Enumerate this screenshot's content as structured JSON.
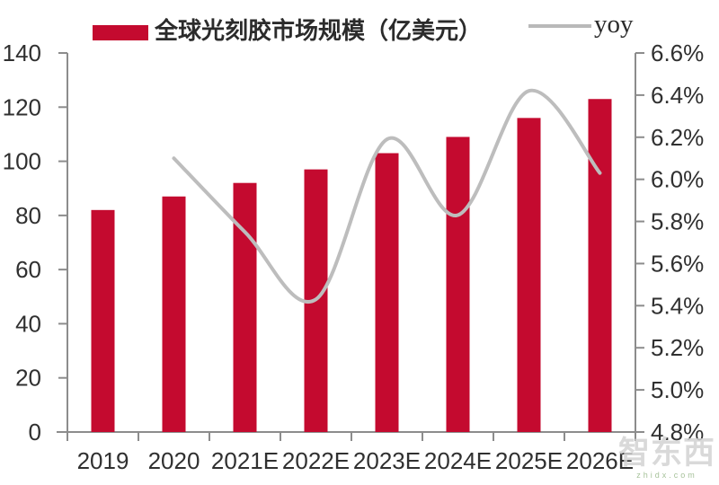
{
  "legend": {
    "series1_label": "全球光刻胶市场规模（亿美元）",
    "series2_label": "yoy"
  },
  "watermark": {
    "name": "智东西",
    "domain": "zhidx.com"
  },
  "colors": {
    "bar": "#C40A2F",
    "line": "#BDBDBD",
    "axis": "#8C8C8C",
    "tick_text": "#303030"
  },
  "chart_data": {
    "type": "bar",
    "title": "",
    "categories": [
      "2019",
      "2020",
      "2021E",
      "2022E",
      "2023E",
      "2024E",
      "2025E",
      "2026E"
    ],
    "series": [
      {
        "name": "全球光刻胶市场规模（亿美元）",
        "type": "bar",
        "axis": "left",
        "color": "#C40A2F",
        "values": [
          82,
          87,
          92,
          97,
          103,
          109,
          116,
          123
        ]
      },
      {
        "name": "yoy",
        "type": "line",
        "axis": "right",
        "color": "#BDBDBD",
        "values": [
          null,
          6.1,
          5.75,
          5.43,
          6.19,
          5.83,
          6.42,
          6.03
        ]
      }
    ],
    "left_axis": {
      "min": 0,
      "max": 140,
      "step": 20,
      "labels": [
        "0",
        "20",
        "40",
        "60",
        "80",
        "100",
        "120",
        "140"
      ]
    },
    "right_axis": {
      "min": 4.8,
      "max": 6.6,
      "step": 0.2,
      "labels": [
        "4.8%",
        "5.0%",
        "5.2%",
        "5.4%",
        "5.6%",
        "5.8%",
        "6.0%",
        "6.2%",
        "6.4%",
        "6.6%"
      ]
    },
    "grid": false,
    "legend_position": "top"
  }
}
